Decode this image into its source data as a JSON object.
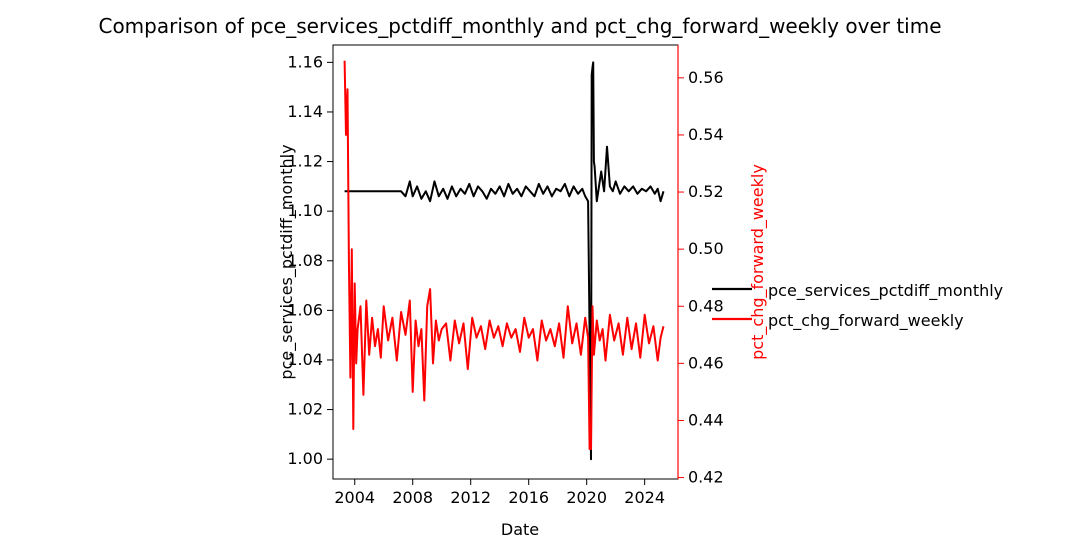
{
  "chart_data": {
    "type": "line",
    "title": "Comparison of pce_services_pctdiff_monthly and pct_chg_forward_weekly over time",
    "xlabel": "Date",
    "ylabel_left": "pce_services_pctdiff_monthly",
    "ylabel_right": "pct_chg_forward_weekly",
    "x_ticks": [
      "2004",
      "2008",
      "2012",
      "2016",
      "2020",
      "2024"
    ],
    "x_tick_years": [
      2004,
      2008,
      2012,
      2016,
      2020,
      2024
    ],
    "xlim": [
      2002.5,
      2026.3
    ],
    "y_left_ticks": [
      "1.00",
      "1.02",
      "1.04",
      "1.06",
      "1.08",
      "1.10",
      "1.12",
      "1.14",
      "1.16"
    ],
    "y_left_tick_values": [
      1.0,
      1.02,
      1.04,
      1.06,
      1.08,
      1.1,
      1.12,
      1.14,
      1.16
    ],
    "ylim_left": [
      0.992,
      1.167
    ],
    "y_right_ticks": [
      "0.42",
      "0.44",
      "0.46",
      "0.48",
      "0.50",
      "0.52",
      "0.54",
      "0.56"
    ],
    "y_right_tick_values": [
      0.42,
      0.44,
      0.46,
      0.48,
      0.5,
      0.52,
      0.54,
      0.56
    ],
    "ylim_right": [
      0.4195,
      0.5715
    ],
    "legend_position": "right, outside plot",
    "grid": false,
    "colors": {
      "left_series": "#000000",
      "right_series": "#ff0000",
      "right_axis": "#ff0000"
    },
    "series": [
      {
        "name": "pce_services_pctdiff_monthly",
        "axis": "left",
        "color": "#000000",
        "x": [
          2003.3,
          2007.2,
          2007.5,
          2007.8,
          2008.0,
          2008.3,
          2008.6,
          2008.9,
          2009.2,
          2009.5,
          2009.8,
          2010.1,
          2010.4,
          2010.7,
          2011.0,
          2011.3,
          2011.6,
          2011.9,
          2012.2,
          2012.5,
          2012.8,
          2013.1,
          2013.4,
          2013.7,
          2014.0,
          2014.3,
          2014.6,
          2014.9,
          2015.2,
          2015.5,
          2015.8,
          2016.1,
          2016.4,
          2016.7,
          2017.0,
          2017.3,
          2017.6,
          2017.9,
          2018.2,
          2018.5,
          2018.8,
          2019.1,
          2019.4,
          2019.7,
          2019.9,
          2020.1,
          2020.3,
          2020.35,
          2020.4,
          2020.45,
          2020.5,
          2020.55,
          2020.7,
          2021.0,
          2021.2,
          2021.4,
          2021.6,
          2021.8,
          2022.0,
          2022.3,
          2022.6,
          2022.9,
          2023.2,
          2023.5,
          2023.8,
          2024.1,
          2024.4,
          2024.7,
          2024.9,
          2025.1,
          2025.3
        ],
        "y": [
          1.108,
          1.108,
          1.106,
          1.112,
          1.106,
          1.11,
          1.105,
          1.108,
          1.104,
          1.112,
          1.106,
          1.109,
          1.105,
          1.11,
          1.106,
          1.109,
          1.107,
          1.111,
          1.106,
          1.11,
          1.108,
          1.105,
          1.109,
          1.107,
          1.11,
          1.106,
          1.111,
          1.107,
          1.109,
          1.106,
          1.11,
          1.108,
          1.106,
          1.111,
          1.107,
          1.11,
          1.106,
          1.109,
          1.108,
          1.111,
          1.106,
          1.11,
          1.107,
          1.109,
          1.106,
          1.104,
          1.0,
          1.155,
          1.158,
          1.16,
          1.12,
          1.118,
          1.104,
          1.116,
          1.108,
          1.126,
          1.11,
          1.108,
          1.112,
          1.107,
          1.11,
          1.108,
          1.11,
          1.107,
          1.109,
          1.108,
          1.11,
          1.107,
          1.109,
          1.104,
          1.108
        ]
      },
      {
        "name": "pct_chg_forward_weekly",
        "axis": "right",
        "color": "#ff0000",
        "x": [
          2003.3,
          2003.4,
          2003.5,
          2003.6,
          2003.7,
          2003.8,
          2003.9,
          2004.0,
          2004.1,
          2004.2,
          2004.4,
          2004.6,
          2004.8,
          2005.0,
          2005.2,
          2005.4,
          2005.6,
          2005.8,
          2006.0,
          2006.3,
          2006.6,
          2006.9,
          2007.2,
          2007.5,
          2007.8,
          2008.0,
          2008.2,
          2008.4,
          2008.6,
          2008.8,
          2009.0,
          2009.2,
          2009.4,
          2009.6,
          2009.8,
          2010.0,
          2010.3,
          2010.6,
          2010.9,
          2011.2,
          2011.5,
          2011.8,
          2012.1,
          2012.4,
          2012.7,
          2013.0,
          2013.3,
          2013.6,
          2013.9,
          2014.2,
          2014.5,
          2014.8,
          2015.1,
          2015.4,
          2015.7,
          2016.0,
          2016.3,
          2016.6,
          2016.9,
          2017.2,
          2017.5,
          2017.8,
          2018.1,
          2018.4,
          2018.7,
          2019.0,
          2019.3,
          2019.6,
          2019.9,
          2020.1,
          2020.2,
          2020.3,
          2020.4,
          2020.5,
          2020.7,
          2020.9,
          2021.1,
          2021.3,
          2021.6,
          2021.9,
          2022.2,
          2022.5,
          2022.8,
          2023.1,
          2023.4,
          2023.7,
          2024.0,
          2024.3,
          2024.6,
          2024.9,
          2025.1,
          2025.3
        ],
        "y": [
          0.566,
          0.54,
          0.556,
          0.496,
          0.455,
          0.5,
          0.437,
          0.488,
          0.46,
          0.472,
          0.48,
          0.449,
          0.482,
          0.463,
          0.476,
          0.466,
          0.472,
          0.462,
          0.48,
          0.468,
          0.476,
          0.461,
          0.478,
          0.47,
          0.482,
          0.45,
          0.475,
          0.466,
          0.472,
          0.447,
          0.48,
          0.486,
          0.46,
          0.475,
          0.468,
          0.472,
          0.474,
          0.461,
          0.475,
          0.467,
          0.474,
          0.458,
          0.476,
          0.469,
          0.473,
          0.465,
          0.475,
          0.469,
          0.473,
          0.466,
          0.474,
          0.469,
          0.472,
          0.464,
          0.476,
          0.469,
          0.472,
          0.461,
          0.475,
          0.468,
          0.472,
          0.466,
          0.474,
          0.462,
          0.48,
          0.467,
          0.474,
          0.463,
          0.476,
          0.469,
          0.43,
          0.43,
          0.48,
          0.463,
          0.475,
          0.468,
          0.472,
          0.461,
          0.477,
          0.468,
          0.474,
          0.463,
          0.476,
          0.465,
          0.474,
          0.462,
          0.477,
          0.467,
          0.473,
          0.461,
          0.469,
          0.473
        ]
      }
    ]
  }
}
